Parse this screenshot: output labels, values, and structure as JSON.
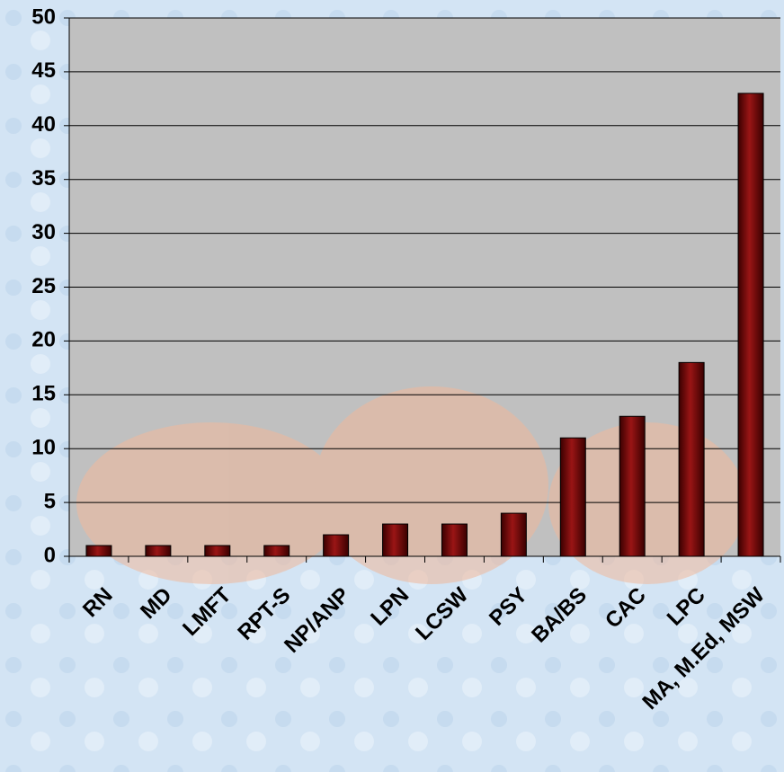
{
  "chart_data": {
    "type": "bar",
    "categories": [
      "RN",
      "MD",
      "LMFT",
      "RPT-S",
      "NP/ANP",
      "LPN",
      "LCSW",
      "PSY",
      "BA/BS",
      "CAC",
      "LPC",
      "MA, M.Ed, MSW"
    ],
    "values": [
      1,
      1,
      1,
      1,
      2,
      3,
      3,
      4,
      11,
      13,
      18,
      43
    ],
    "color": "#6e0a0a",
    "ylim": [
      0,
      50
    ],
    "yticks": [
      0,
      5,
      10,
      15,
      20,
      25,
      30,
      35,
      40,
      45,
      50
    ],
    "grid": true
  }
}
